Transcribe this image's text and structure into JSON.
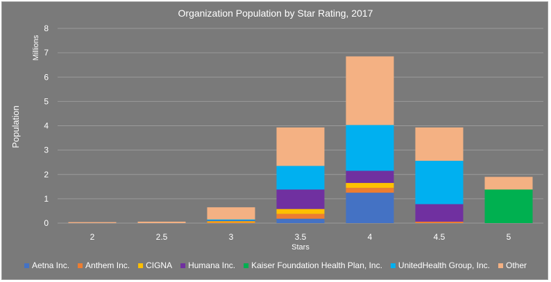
{
  "chart_data": {
    "type": "bar",
    "stacked": true,
    "title": "Organization Population by Star Rating, 2017",
    "xlabel": "Stars",
    "ylabel": "Population",
    "yunit_label": "Millions",
    "ylim": [
      0,
      8
    ],
    "yticks": [
      0,
      1,
      2,
      3,
      4,
      5,
      6,
      7,
      8
    ],
    "grid": true,
    "legend": "bottom",
    "categories": [
      "2",
      "2.5",
      "3",
      "3.5",
      "4",
      "4.5",
      "5"
    ],
    "series": [
      {
        "name": "Aetna Inc.",
        "color": "#4472c4",
        "values": [
          0,
          0,
          0,
          0.18,
          1.25,
          0,
          0
        ]
      },
      {
        "name": "Anthem Inc.",
        "color": "#ed7d31",
        "values": [
          0,
          0,
          0.03,
          0.2,
          0.2,
          0.06,
          0
        ]
      },
      {
        "name": "CIGNA",
        "color": "#ffc000",
        "values": [
          0,
          0,
          0.05,
          0.2,
          0.2,
          0,
          0
        ]
      },
      {
        "name": "Humana Inc.",
        "color": "#7030a0",
        "values": [
          0,
          0,
          0.02,
          0.8,
          0.5,
          0.72,
          0
        ]
      },
      {
        "name": "Kaiser Foundation Health Plan, Inc.",
        "color": "#00b050",
        "values": [
          0,
          0,
          0,
          0,
          0,
          0,
          1.38
        ]
      },
      {
        "name": "UnitedHealth Group, Inc.",
        "color": "#00b0f0",
        "values": [
          0,
          0,
          0.05,
          0.97,
          1.88,
          1.78,
          0
        ]
      },
      {
        "name": "Other",
        "color": "#f4b183",
        "values": [
          0.04,
          0.06,
          0.5,
          1.58,
          2.82,
          1.37,
          0.52
        ]
      }
    ]
  }
}
